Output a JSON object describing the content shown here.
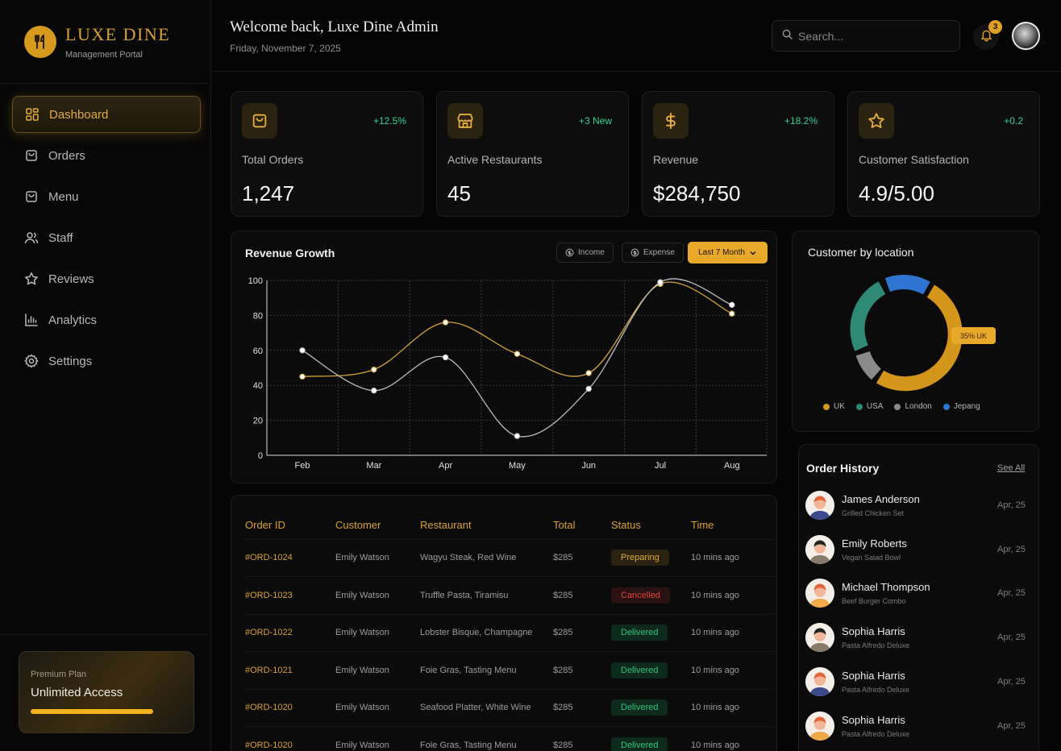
{
  "brand": {
    "name": "LUXE DINE",
    "subtitle": "Management Portal",
    "logo_icon": "fork-knife-icon"
  },
  "sidebar": {
    "items": [
      {
        "label": "Dashboard",
        "icon": "dashboard-icon",
        "active": true
      },
      {
        "label": "Orders",
        "icon": "bag-icon"
      },
      {
        "label": "Menu",
        "icon": "menu-book-icon"
      },
      {
        "label": "Staff",
        "icon": "users-icon"
      },
      {
        "label": "Reviews",
        "icon": "star-icon"
      },
      {
        "label": "Analytics",
        "icon": "chart-bar-icon"
      },
      {
        "label": "Settings",
        "icon": "gear-icon"
      }
    ],
    "plan": {
      "label": "Premium Plan",
      "title": "Unlimited Access"
    }
  },
  "header": {
    "welcome": "Welcome back, Luxe Dine Admin",
    "date": "Friday, November 7, 2025",
    "search_placeholder": "Search...",
    "notifications": "3"
  },
  "stats": [
    {
      "label": "Total Orders",
      "value": "1,247",
      "change": "+12.5%",
      "icon": "bag-icon"
    },
    {
      "label": "Active Restaurants",
      "value": "45",
      "change": "+3 New",
      "icon": "store-icon"
    },
    {
      "label": "Revenue",
      "value": "$284,750",
      "change": "+18.2%",
      "icon": "dollar-icon"
    },
    {
      "label": "Customer Satisfaction",
      "value": "4.9/5.00",
      "change": "+0.2",
      "icon": "star-icon"
    }
  ],
  "revenue": {
    "title": "Revenue Growth",
    "income_label": "Income",
    "expense_label": "Expense",
    "period_label": "Last 7 Month"
  },
  "chart_data": {
    "type": "line",
    "title": "Revenue Growth",
    "x": [
      "Feb",
      "Mar",
      "Apr",
      "May",
      "Jun",
      "Jul",
      "Aug"
    ],
    "yticks": [
      0,
      20,
      40,
      60,
      80,
      100
    ],
    "ylim": [
      0,
      100
    ],
    "grid": true,
    "series": [
      {
        "name": "Income",
        "color": "#d4a437",
        "values": [
          45,
          49,
          76,
          58,
          47,
          98,
          81
        ]
      },
      {
        "name": "Expense",
        "color": "#bdbdbd",
        "values": [
          60,
          37,
          56,
          11,
          38,
          99,
          86
        ]
      }
    ]
  },
  "location": {
    "title": "Customer by location",
    "tag": "35% UK",
    "legend": [
      {
        "label": "UK",
        "color": "#d3961a"
      },
      {
        "label": "USA",
        "color": "#2e8a76"
      },
      {
        "label": "London",
        "color": "#8a8a8a"
      },
      {
        "label": "Jepang",
        "color": "#2f74d0"
      }
    ]
  },
  "orders": {
    "headers": [
      "Order ID",
      "Customer",
      "Restaurant",
      "Total",
      "Status",
      "Time"
    ],
    "rows": [
      {
        "id": "#ORD-1024",
        "customer": "Emily Watson",
        "restaurant": "Wagyu Steak, Red Wine",
        "total": "$285",
        "status": "Preparing",
        "status_kind": "prep",
        "time": "10 mins ago"
      },
      {
        "id": "#ORD-1023",
        "customer": "Emily Watson",
        "restaurant": "Truffle Pasta, Tiramisu",
        "total": "$285",
        "status": "Cancelled",
        "status_kind": "canc",
        "time": "10 mins ago"
      },
      {
        "id": "#ORD-1022",
        "customer": "Emily Watson",
        "restaurant": "Lobster Bisque, Champagne",
        "total": "$285",
        "status": "Delivered",
        "status_kind": "del",
        "time": "10 mins ago"
      },
      {
        "id": "#ORD-1021",
        "customer": "Emily Watson",
        "restaurant": "Foie Gras, Tasting Menu",
        "total": "$285",
        "status": "Delivered",
        "status_kind": "del",
        "time": "10 mins ago"
      },
      {
        "id": "#ORD-1020",
        "customer": "Emily Watson",
        "restaurant": "Seafood Platter, White Wine",
        "total": "$285",
        "status": "Delivered",
        "status_kind": "del",
        "time": "10 mins ago"
      },
      {
        "id": "#ORD-1020",
        "customer": "Emily Watson",
        "restaurant": "Foie Gras, Tasting Menu",
        "total": "$285",
        "status": "Delivered",
        "status_kind": "del",
        "time": "10 mins ago"
      }
    ]
  },
  "history": {
    "title": "Order History",
    "see_all": "See All",
    "items": [
      {
        "name": "James Anderson",
        "dish": "Grilled Chicken Set",
        "date": "Apr, 25",
        "hair": "#e0663a",
        "shirt": "#3a4a8a"
      },
      {
        "name": "Emily Roberts",
        "dish": "Vegan Salad Bowl",
        "date": "Apr, 25",
        "hair": "#222222",
        "shirt": "#8a7a6a"
      },
      {
        "name": "Michael Thompson",
        "dish": "Beef Burger Combo",
        "date": "Apr, 25",
        "hair": "#e0663a",
        "shirt": "#f0a848"
      },
      {
        "name": "Sophia Harris",
        "dish": "Pasta Alfredo Deluxe",
        "date": "Apr, 25",
        "hair": "#222222",
        "shirt": "#8a7a6a"
      },
      {
        "name": "Sophia Harris",
        "dish": "Pasta Alfredo Deluxe",
        "date": "Apr, 25",
        "hair": "#e0663a",
        "shirt": "#3a4a8a"
      },
      {
        "name": "Sophia Harris",
        "dish": "Pasta Alfredo Deluxe",
        "date": "Apr, 25",
        "hair": "#e0663a",
        "shirt": "#f0a848"
      }
    ]
  }
}
